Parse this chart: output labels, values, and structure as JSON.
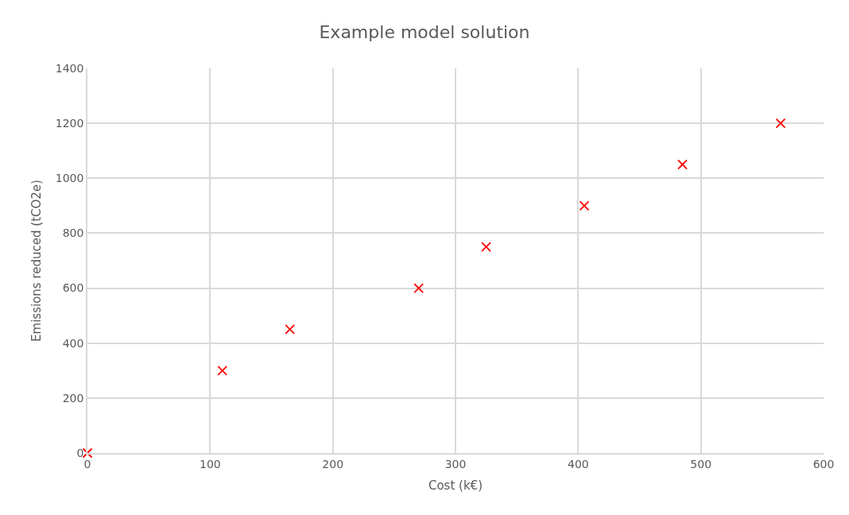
{
  "chart_data": {
    "type": "scatter",
    "title": "Example model solution",
    "xlabel": "Cost (k€)",
    "ylabel": "Emissions reduced (tCO2e)",
    "x": [
      0,
      110,
      165,
      270,
      325,
      405,
      485,
      565
    ],
    "series": [
      {
        "color": "#ff0000",
        "values": [
          0,
          300,
          450,
          600,
          750,
          900,
          1050,
          1200
        ]
      }
    ],
    "xlim": [
      0,
      600
    ],
    "xticks": [
      0,
      100,
      200,
      300,
      400,
      500,
      600
    ],
    "ylim": [
      0,
      1400
    ],
    "yticks": [
      0,
      200,
      400,
      600,
      800,
      1000,
      1200,
      1400
    ],
    "grid": true,
    "marker": "cross"
  }
}
